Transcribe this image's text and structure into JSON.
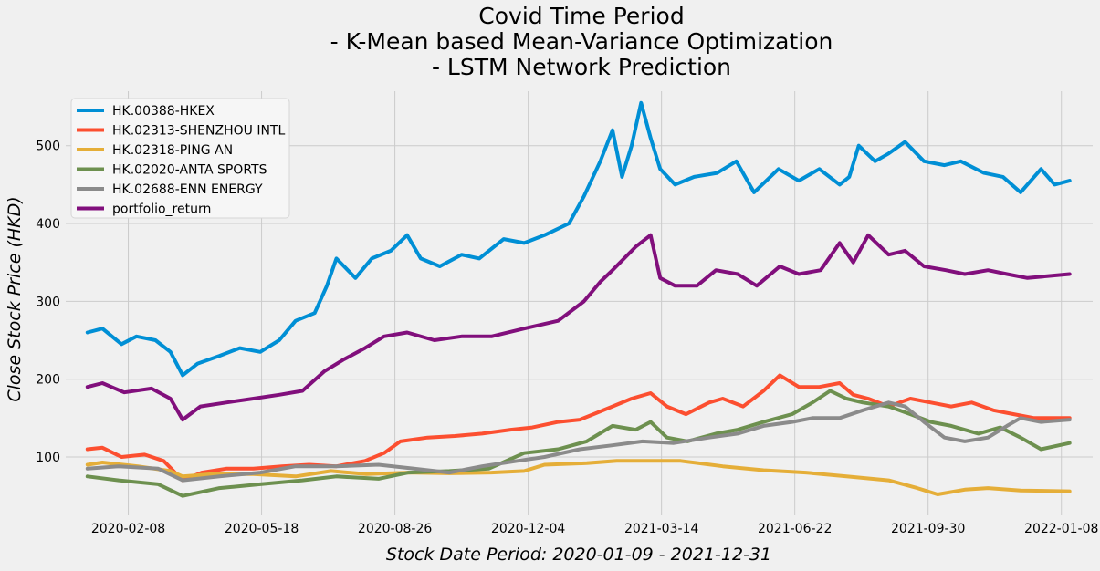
{
  "chart_data": {
    "type": "line",
    "title_lines": [
      "Covid Time Period",
      "- K-Mean based Mean-Variance Optimization",
      "- LSTM Network Prediction"
    ],
    "xlabel": "Stock Date Period: 2020-01-09 - 2021-12-31",
    "ylabel": "Close Stock Price (HKD)",
    "x_tick_labels": [
      "2020-02-08",
      "2020-05-18",
      "2020-08-26",
      "2020-12-04",
      "2021-03-14",
      "2021-06-22",
      "2021-09-30",
      "2022-01-08"
    ],
    "y_ticks": [
      100,
      200,
      300,
      400,
      500
    ],
    "xlim": [
      "2019-12-24",
      "2022-01-17"
    ],
    "ylim": [
      25,
      570
    ],
    "grid": true,
    "legend_position": "top-left",
    "series": [
      {
        "name": "HK.00388-HKEX",
        "color": "#008fd5",
        "points": [
          [
            "2020-01-09",
            260
          ],
          [
            "2020-01-20",
            265
          ],
          [
            "2020-02-03",
            245
          ],
          [
            "2020-02-14",
            255
          ],
          [
            "2020-02-28",
            250
          ],
          [
            "2020-03-10",
            235
          ],
          [
            "2020-03-19",
            205
          ],
          [
            "2020-03-30",
            220
          ],
          [
            "2020-04-15",
            230
          ],
          [
            "2020-04-30",
            240
          ],
          [
            "2020-05-15",
            235
          ],
          [
            "2020-05-29",
            250
          ],
          [
            "2020-06-10",
            275
          ],
          [
            "2020-06-24",
            285
          ],
          [
            "2020-07-03",
            320
          ],
          [
            "2020-07-10",
            355
          ],
          [
            "2020-07-24",
            330
          ],
          [
            "2020-08-05",
            355
          ],
          [
            "2020-08-19",
            365
          ],
          [
            "2020-08-31",
            385
          ],
          [
            "2020-09-10",
            355
          ],
          [
            "2020-09-24",
            345
          ],
          [
            "2020-10-10",
            360
          ],
          [
            "2020-10-23",
            355
          ],
          [
            "2020-11-10",
            380
          ],
          [
            "2020-11-25",
            375
          ],
          [
            "2020-12-10",
            385
          ],
          [
            "2020-12-28",
            400
          ],
          [
            "2021-01-08",
            435
          ],
          [
            "2021-01-20",
            480
          ],
          [
            "2021-01-29",
            520
          ],
          [
            "2021-02-05",
            460
          ],
          [
            "2021-02-12",
            500
          ],
          [
            "2021-02-19",
            555
          ],
          [
            "2021-02-26",
            510
          ],
          [
            "2021-03-05",
            470
          ],
          [
            "2021-03-16",
            450
          ],
          [
            "2021-03-30",
            460
          ],
          [
            "2021-04-16",
            465
          ],
          [
            "2021-04-30",
            480
          ],
          [
            "2021-05-13",
            440
          ],
          [
            "2021-05-31",
            470
          ],
          [
            "2021-06-15",
            455
          ],
          [
            "2021-06-30",
            470
          ],
          [
            "2021-07-15",
            450
          ],
          [
            "2021-07-22",
            460
          ],
          [
            "2021-07-29",
            500
          ],
          [
            "2021-08-10",
            480
          ],
          [
            "2021-08-20",
            490
          ],
          [
            "2021-09-01",
            505
          ],
          [
            "2021-09-15",
            480
          ],
          [
            "2021-09-30",
            475
          ],
          [
            "2021-10-12",
            480
          ],
          [
            "2021-10-29",
            465
          ],
          [
            "2021-11-12",
            460
          ],
          [
            "2021-11-25",
            440
          ],
          [
            "2021-12-10",
            470
          ],
          [
            "2021-12-20",
            450
          ],
          [
            "2021-12-31",
            455
          ]
        ]
      },
      {
        "name": "HK.02313-SHENZHOU INTL",
        "color": "#fc4f30",
        "points": [
          [
            "2020-01-09",
            110
          ],
          [
            "2020-01-20",
            112
          ],
          [
            "2020-02-03",
            100
          ],
          [
            "2020-02-20",
            103
          ],
          [
            "2020-03-05",
            95
          ],
          [
            "2020-03-19",
            70
          ],
          [
            "2020-04-02",
            80
          ],
          [
            "2020-04-20",
            85
          ],
          [
            "2020-05-10",
            85
          ],
          [
            "2020-05-31",
            88
          ],
          [
            "2020-06-20",
            90
          ],
          [
            "2020-07-10",
            88
          ],
          [
            "2020-07-31",
            95
          ],
          [
            "2020-08-14",
            105
          ],
          [
            "2020-08-26",
            120
          ],
          [
            "2020-09-15",
            125
          ],
          [
            "2020-10-05",
            127
          ],
          [
            "2020-10-25",
            130
          ],
          [
            "2020-11-15",
            135
          ],
          [
            "2020-12-01",
            138
          ],
          [
            "2020-12-20",
            145
          ],
          [
            "2021-01-05",
            148
          ],
          [
            "2021-01-15",
            155
          ],
          [
            "2021-01-29",
            165
          ],
          [
            "2021-02-12",
            175
          ],
          [
            "2021-02-26",
            182
          ],
          [
            "2021-03-10",
            165
          ],
          [
            "2021-03-24",
            155
          ],
          [
            "2021-04-10",
            170
          ],
          [
            "2021-04-20",
            175
          ],
          [
            "2021-05-05",
            165
          ],
          [
            "2021-05-20",
            185
          ],
          [
            "2021-06-01",
            205
          ],
          [
            "2021-06-15",
            190
          ],
          [
            "2021-06-30",
            190
          ],
          [
            "2021-07-15",
            195
          ],
          [
            "2021-07-25",
            180
          ],
          [
            "2021-08-05",
            175
          ],
          [
            "2021-08-20",
            165
          ],
          [
            "2021-09-05",
            175
          ],
          [
            "2021-09-20",
            170
          ],
          [
            "2021-10-05",
            165
          ],
          [
            "2021-10-20",
            170
          ],
          [
            "2021-11-05",
            160
          ],
          [
            "2021-11-20",
            155
          ],
          [
            "2021-12-05",
            150
          ],
          [
            "2021-12-20",
            150
          ],
          [
            "2021-12-31",
            150
          ]
        ]
      },
      {
        "name": "HK.02318-PING AN",
        "color": "#e5ae38",
        "points": [
          [
            "2020-01-09",
            90
          ],
          [
            "2020-01-20",
            93
          ],
          [
            "2020-02-15",
            88
          ],
          [
            "2020-03-10",
            82
          ],
          [
            "2020-03-19",
            75
          ],
          [
            "2020-04-10",
            78
          ],
          [
            "2020-05-10",
            78
          ],
          [
            "2020-06-10",
            75
          ],
          [
            "2020-07-06",
            82
          ],
          [
            "2020-08-01",
            78
          ],
          [
            "2020-09-01",
            80
          ],
          [
            "2020-10-01",
            79
          ],
          [
            "2020-11-01",
            80
          ],
          [
            "2020-11-25",
            82
          ],
          [
            "2020-12-10",
            90
          ],
          [
            "2021-01-10",
            92
          ],
          [
            "2021-02-01",
            95
          ],
          [
            "2021-02-20",
            95
          ],
          [
            "2021-03-20",
            95
          ],
          [
            "2021-04-20",
            88
          ],
          [
            "2021-05-20",
            83
          ],
          [
            "2021-06-20",
            80
          ],
          [
            "2021-07-20",
            75
          ],
          [
            "2021-08-20",
            70
          ],
          [
            "2021-09-10",
            60
          ],
          [
            "2021-09-25",
            52
          ],
          [
            "2021-10-15",
            58
          ],
          [
            "2021-11-01",
            60
          ],
          [
            "2021-11-25",
            57
          ],
          [
            "2021-12-31",
            56
          ]
        ]
      },
      {
        "name": "HK.02020-ANTA SPORTS",
        "color": "#6d904f",
        "points": [
          [
            "2020-01-09",
            75
          ],
          [
            "2020-02-01",
            70
          ],
          [
            "2020-03-01",
            65
          ],
          [
            "2020-03-19",
            50
          ],
          [
            "2020-04-15",
            60
          ],
          [
            "2020-05-15",
            65
          ],
          [
            "2020-06-15",
            70
          ],
          [
            "2020-07-10",
            75
          ],
          [
            "2020-08-10",
            72
          ],
          [
            "2020-09-01",
            80
          ],
          [
            "2020-10-01",
            82
          ],
          [
            "2020-10-30",
            85
          ],
          [
            "2020-11-25",
            105
          ],
          [
            "2020-12-20",
            110
          ],
          [
            "2021-01-10",
            120
          ],
          [
            "2021-01-29",
            140
          ],
          [
            "2021-02-15",
            135
          ],
          [
            "2021-02-26",
            145
          ],
          [
            "2021-03-10",
            125
          ],
          [
            "2021-03-25",
            120
          ],
          [
            "2021-04-15",
            130
          ],
          [
            "2021-05-01",
            135
          ],
          [
            "2021-05-20",
            145
          ],
          [
            "2021-06-10",
            155
          ],
          [
            "2021-06-25",
            170
          ],
          [
            "2021-07-08",
            185
          ],
          [
            "2021-07-20",
            175
          ],
          [
            "2021-08-01",
            170
          ],
          [
            "2021-08-20",
            165
          ],
          [
            "2021-09-05",
            155
          ],
          [
            "2021-09-20",
            145
          ],
          [
            "2021-10-05",
            140
          ],
          [
            "2021-10-25",
            130
          ],
          [
            "2021-11-10",
            138
          ],
          [
            "2021-11-25",
            125
          ],
          [
            "2021-12-10",
            110
          ],
          [
            "2021-12-31",
            118
          ]
        ]
      },
      {
        "name": "HK.02688-ENN ENERGY",
        "color": "#8b8b8b",
        "points": [
          [
            "2020-01-09",
            85
          ],
          [
            "2020-02-01",
            88
          ],
          [
            "2020-03-01",
            85
          ],
          [
            "2020-03-19",
            70
          ],
          [
            "2020-04-15",
            75
          ],
          [
            "2020-05-15",
            80
          ],
          [
            "2020-06-10",
            88
          ],
          [
            "2020-07-10",
            88
          ],
          [
            "2020-08-10",
            90
          ],
          [
            "2020-09-05",
            85
          ],
          [
            "2020-10-01",
            80
          ],
          [
            "2020-10-25",
            88
          ],
          [
            "2020-11-20",
            95
          ],
          [
            "2020-12-10",
            100
          ],
          [
            "2021-01-05",
            110
          ],
          [
            "2021-01-29",
            115
          ],
          [
            "2021-02-20",
            120
          ],
          [
            "2021-03-15",
            118
          ],
          [
            "2021-04-10",
            125
          ],
          [
            "2021-05-01",
            130
          ],
          [
            "2021-05-20",
            140
          ],
          [
            "2021-06-10",
            145
          ],
          [
            "2021-06-25",
            150
          ],
          [
            "2021-07-15",
            150
          ],
          [
            "2021-08-01",
            160
          ],
          [
            "2021-08-20",
            170
          ],
          [
            "2021-09-01",
            165
          ],
          [
            "2021-09-15",
            145
          ],
          [
            "2021-09-30",
            125
          ],
          [
            "2021-10-15",
            120
          ],
          [
            "2021-11-01",
            125
          ],
          [
            "2021-11-15",
            140
          ],
          [
            "2021-11-25",
            150
          ],
          [
            "2021-12-10",
            145
          ],
          [
            "2021-12-31",
            148
          ]
        ]
      },
      {
        "name": "portfolio_return",
        "color": "#810f7c",
        "points": [
          [
            "2020-01-09",
            190
          ],
          [
            "2020-01-20",
            195
          ],
          [
            "2020-02-05",
            183
          ],
          [
            "2020-02-25",
            188
          ],
          [
            "2020-03-10",
            175
          ],
          [
            "2020-03-19",
            148
          ],
          [
            "2020-04-01",
            165
          ],
          [
            "2020-04-20",
            170
          ],
          [
            "2020-05-10",
            175
          ],
          [
            "2020-05-29",
            180
          ],
          [
            "2020-06-15",
            185
          ],
          [
            "2020-07-01",
            210
          ],
          [
            "2020-07-15",
            225
          ],
          [
            "2020-07-31",
            240
          ],
          [
            "2020-08-14",
            255
          ],
          [
            "2020-08-31",
            260
          ],
          [
            "2020-09-20",
            250
          ],
          [
            "2020-10-10",
            255
          ],
          [
            "2020-11-01",
            255
          ],
          [
            "2020-11-25",
            265
          ],
          [
            "2020-12-20",
            275
          ],
          [
            "2021-01-08",
            300
          ],
          [
            "2021-01-20",
            325
          ],
          [
            "2021-01-29",
            340
          ],
          [
            "2021-02-15",
            370
          ],
          [
            "2021-02-26",
            385
          ],
          [
            "2021-03-05",
            330
          ],
          [
            "2021-03-16",
            320
          ],
          [
            "2021-04-01",
            320
          ],
          [
            "2021-04-15",
            340
          ],
          [
            "2021-05-01",
            335
          ],
          [
            "2021-05-15",
            320
          ],
          [
            "2021-06-01",
            345
          ],
          [
            "2021-06-15",
            335
          ],
          [
            "2021-07-01",
            340
          ],
          [
            "2021-07-15",
            375
          ],
          [
            "2021-07-25",
            350
          ],
          [
            "2021-08-05",
            385
          ],
          [
            "2021-08-20",
            360
          ],
          [
            "2021-09-01",
            365
          ],
          [
            "2021-09-15",
            345
          ],
          [
            "2021-10-01",
            340
          ],
          [
            "2021-10-15",
            335
          ],
          [
            "2021-11-01",
            340
          ],
          [
            "2021-11-15",
            335
          ],
          [
            "2021-11-30",
            330
          ],
          [
            "2021-12-31",
            335
          ]
        ]
      }
    ]
  }
}
